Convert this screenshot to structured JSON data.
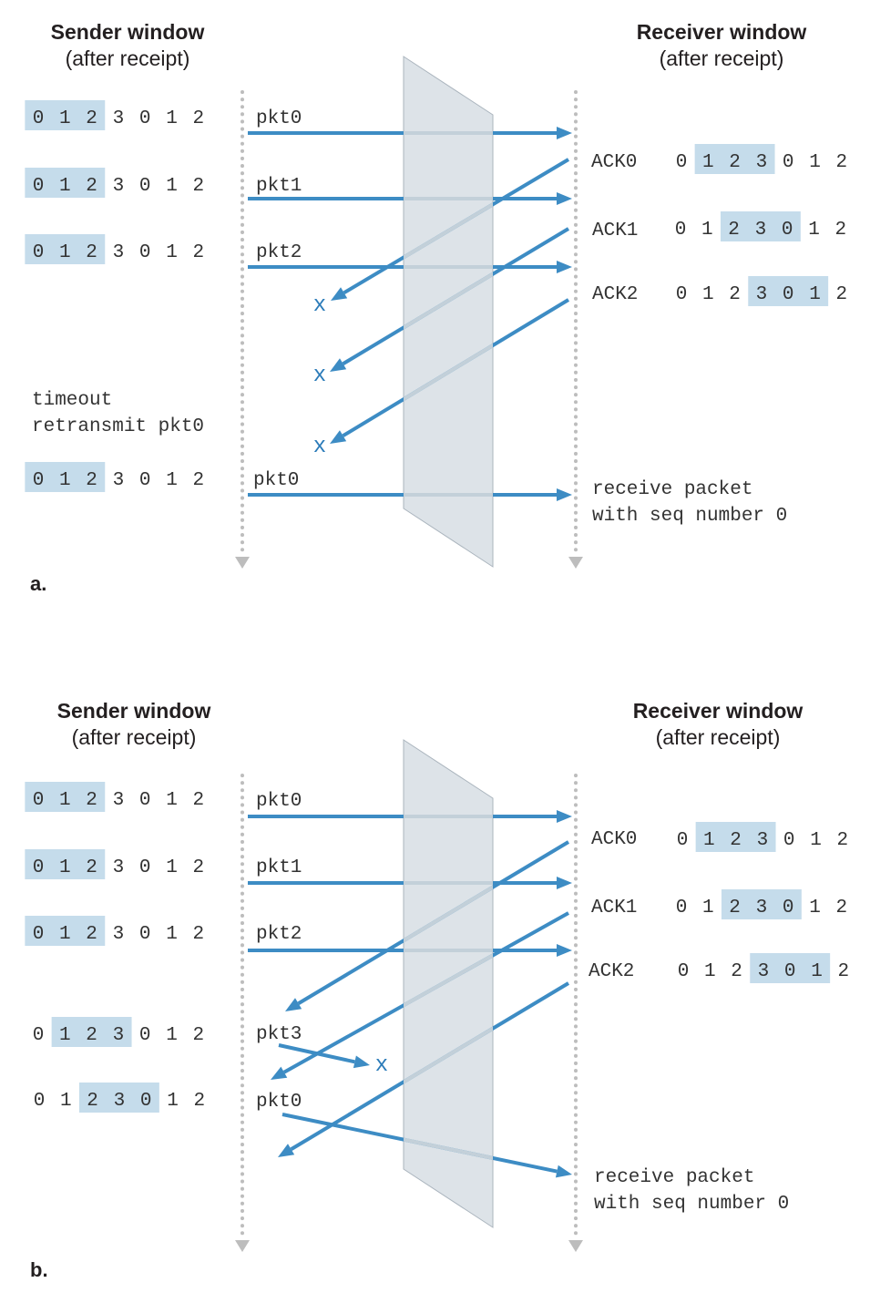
{
  "panels": [
    {
      "label": "a.",
      "sender_title_line1": "Sender window",
      "sender_title_line2": "(after receipt)",
      "receiver_title_line1": "Receiver window",
      "receiver_title_line2": "(after receipt)",
      "sequence_digits": [
        "0",
        "1",
        "2",
        "3",
        "0",
        "1",
        "2"
      ],
      "sender_windows": [
        {
          "highlight_start": 0,
          "highlight_count": 3
        },
        {
          "highlight_start": 0,
          "highlight_count": 3
        },
        {
          "highlight_start": 0,
          "highlight_count": 3
        },
        {
          "highlight_start": 0,
          "highlight_count": 3
        }
      ],
      "receiver_windows": [
        {
          "highlight_start": 1,
          "highlight_count": 3
        },
        {
          "highlight_start": 2,
          "highlight_count": 3
        },
        {
          "highlight_start": 3,
          "highlight_count": 3
        }
      ],
      "sender_labels": [
        "pkt0",
        "pkt1",
        "pkt2",
        "pkt0"
      ],
      "receiver_labels": [
        "ACK0",
        "ACK1",
        "ACK2"
      ],
      "sender_note_lines": [
        "timeout",
        "retransmit pkt0"
      ],
      "receiver_note_lines": [
        "receive packet",
        "with seq number 0"
      ],
      "loss_marks": [
        "x",
        "x",
        "x"
      ]
    },
    {
      "label": "b.",
      "sender_title_line1": "Sender window",
      "sender_title_line2": "(after receipt)",
      "receiver_title_line1": "Receiver window",
      "receiver_title_line2": "(after receipt)",
      "sequence_digits": [
        "0",
        "1",
        "2",
        "3",
        "0",
        "1",
        "2"
      ],
      "sender_windows": [
        {
          "highlight_start": 0,
          "highlight_count": 3
        },
        {
          "highlight_start": 0,
          "highlight_count": 3
        },
        {
          "highlight_start": 0,
          "highlight_count": 3
        },
        {
          "highlight_start": 1,
          "highlight_count": 3
        },
        {
          "highlight_start": 2,
          "highlight_count": 3
        }
      ],
      "receiver_windows": [
        {
          "highlight_start": 1,
          "highlight_count": 3
        },
        {
          "highlight_start": 2,
          "highlight_count": 3
        },
        {
          "highlight_start": 3,
          "highlight_count": 3
        }
      ],
      "sender_labels": [
        "pkt0",
        "pkt1",
        "pkt2",
        "pkt3",
        "pkt0"
      ],
      "receiver_labels": [
        "ACK0",
        "ACK1",
        "ACK2"
      ],
      "receiver_note_lines": [
        "receive packet",
        "with seq number 0"
      ],
      "loss_marks": [
        "x"
      ]
    }
  ],
  "colors": {
    "arrow": "#3d8cc4",
    "window_highlight": "#c5dceb",
    "channel": "#dde3e8",
    "timeline": "#bdbdbd"
  }
}
